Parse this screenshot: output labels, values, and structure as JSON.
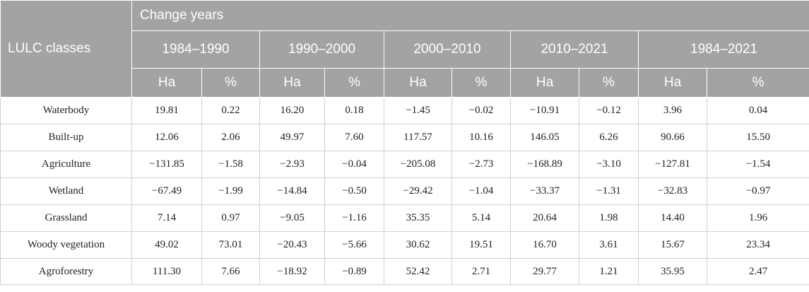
{
  "table": {
    "row_header": "LULC classes",
    "group_header": "Change years",
    "periods": [
      "1984–1990",
      "1990–2000",
      "2000–2010",
      "2010–2021",
      "1984–2021"
    ],
    "unit_labels": [
      "Ha",
      "%"
    ],
    "rows": [
      {
        "name": "Waterbody",
        "values": [
          "19.81",
          "0.22",
          "16.20",
          "0.18",
          "−1.45",
          "−0.02",
          "−10.91",
          "−0.12",
          "3.96",
          "0.04"
        ]
      },
      {
        "name": "Built-up",
        "values": [
          "12.06",
          "2.06",
          "49.97",
          "7.60",
          "117.57",
          "10.16",
          "146.05",
          "6.26",
          "90.66",
          "15.50"
        ]
      },
      {
        "name": "Agriculture",
        "values": [
          "−131.85",
          "−1.58",
          "−2.93",
          "−0.04",
          "−205.08",
          "−2.73",
          "−168.89",
          "−3.10",
          "−127.81",
          "−1.54"
        ]
      },
      {
        "name": "Wetland",
        "values": [
          "−67.49",
          "−1.99",
          "−14.84",
          "−0.50",
          "−29.42",
          "−1.04",
          "−33.37",
          "−1.31",
          "−32.83",
          "−0.97"
        ]
      },
      {
        "name": "Grassland",
        "values": [
          "7.14",
          "0.97",
          "−9.05",
          "−1.16",
          "35.35",
          "5.14",
          "20.64",
          "1.98",
          "14.40",
          "1.96"
        ]
      },
      {
        "name": "Woody vegetation",
        "values": [
          "49.02",
          "73.01",
          "−20.43",
          "−5.66",
          "30.62",
          "19.51",
          "16.70",
          "3.61",
          "15.67",
          "23.34"
        ]
      },
      {
        "name": "Agroforestry",
        "values": [
          "111.30",
          "7.66",
          "−18.92",
          "−0.89",
          "52.42",
          "2.71",
          "29.77",
          "1.21",
          "35.95",
          "2.47"
        ]
      }
    ]
  }
}
